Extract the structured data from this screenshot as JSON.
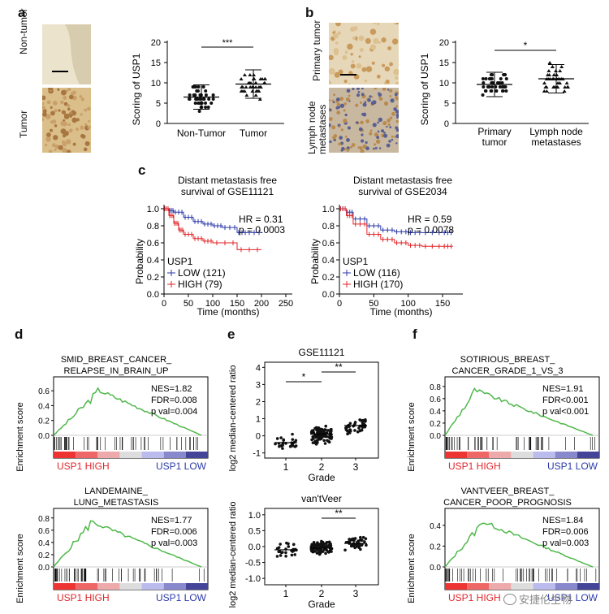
{
  "panels": {
    "a": {
      "label": "a",
      "img_labels": [
        "Non-tumor",
        "Tumor"
      ],
      "ylabel": "Scoring of USP1",
      "categories": [
        "Non-Tumor",
        "Tumor"
      ],
      "sig": "***",
      "yticks": [
        "0",
        "5",
        "10",
        "15",
        "20"
      ]
    },
    "b": {
      "label": "b",
      "img_labels": [
        "Primary tumor",
        "Lymph node metastases"
      ],
      "ylabel": "Scoring of USP1",
      "categories": [
        "Primary tumor",
        "Lymph node metastases"
      ],
      "sig": "*",
      "yticks": [
        "0",
        "5",
        "10",
        "15",
        "20"
      ]
    },
    "c": {
      "label": "c",
      "left": {
        "title1": "Distant metastasis free",
        "title2": "survival of GSE11121",
        "hr": "HR = 0.31",
        "p": "p = 0.0003",
        "legend_title": "USP1",
        "legend_low": "LOW (121)",
        "legend_high": "HIGH (79)",
        "xlabel": "Time (months)",
        "ylabel": "Probability",
        "xticks": [
          "0",
          "50",
          "100",
          "150",
          "200",
          "250"
        ],
        "yticks": [
          "0.0",
          "0.2",
          "0.4",
          "0.6",
          "0.8",
          "1.0"
        ]
      },
      "right": {
        "title1": "Distant metastasis free",
        "title2": "survival of GSE2034",
        "hr": "HR = 0.59",
        "p": "p = 0.0078",
        "legend_title": "USP1",
        "legend_low": "LOW (116)",
        "legend_high": "HIGH (170)",
        "xlabel": "Time (months)",
        "ylabel": "Probability",
        "xticks": [
          "0",
          "50",
          "100",
          "150"
        ],
        "yticks": [
          "0.0",
          "0.2",
          "0.4",
          "0.6",
          "0.8",
          "1.0"
        ]
      }
    },
    "d": {
      "label": "d",
      "top": {
        "title1": "SMID_BREAST_CANCER_",
        "title2": "RELAPSE_IN_BRAIN_UP",
        "nes": "NES=1.82",
        "fdr": "FDR=0.008",
        "pval": "p val=0.004",
        "yticks": [
          "0.6",
          "0.4",
          "0.2",
          "0.0"
        ],
        "ylabel": "Enrichment score",
        "high": "USP1 HIGH",
        "low": "USP1 LOW"
      },
      "bottom": {
        "title1": "LANDEMAINE_",
        "title2": "LUNG_METASTASIS",
        "nes": "NES=1.77",
        "fdr": "FDR=0.006",
        "pval": "p val=0.003",
        "yticks": [
          "0.8",
          "0.6",
          "0.4",
          "0.2",
          "0.0"
        ],
        "ylabel": "Enrichment score",
        "high": "USP1 HIGH",
        "low": "USP1 LOW"
      }
    },
    "e": {
      "label": "e",
      "top": {
        "title": "GSE11121",
        "sig1": "*",
        "sig2": "**",
        "xlabel": "Grade",
        "ylabel": "log2 median-centered ratio",
        "categories": [
          "1",
          "2",
          "3"
        ],
        "yticks": [
          "4",
          "3",
          "2",
          "1",
          "0",
          "-1"
        ]
      },
      "bottom": {
        "title": "van'tVeer",
        "sig2": "**",
        "xlabel": "Grade",
        "ylabel": "log2 median-centered ratio",
        "categories": [
          "1",
          "2",
          "3"
        ],
        "yticks": [
          "1.0",
          "0.5",
          "0.0",
          "-0.5",
          "-1.0"
        ]
      }
    },
    "f": {
      "label": "f",
      "top": {
        "title1": "SOTIRIOUS_BREAST_",
        "title2": "CANCER_GRADE_1_VS_3",
        "nes": "NES=1.91",
        "fdr": "FDR<0.001",
        "pval": "p val<0.001",
        "yticks": [
          "0.8",
          "0.6",
          "0.4",
          "0.2",
          "0.0"
        ],
        "ylabel": "Enrichment score",
        "high": "USP1 HIGH",
        "low": "USP1 LOW"
      },
      "bottom": {
        "title1": "VANTVEER_BREAST_",
        "title2": "CANCER_POOR_PROGNOSIS",
        "nes": "NES=1.84",
        "fdr": "FDR=0.006",
        "pval": "p val=0.003",
        "yticks": [
          "0.4",
          "0.2",
          "0.0"
        ],
        "ylabel": "Enrichment score",
        "high": "USP1 HIGH",
        "low": "USP1 LOW"
      }
    }
  },
  "watermark": "安捷伦生物",
  "colors": {
    "blue": "#2b3aa8",
    "red": "#e0262a",
    "green": "#4fb84a",
    "tissue_bg": "#e8dcc0",
    "tissue_brown": "#b98a4e"
  },
  "chart_data": [
    {
      "type": "scatter",
      "panel": "a",
      "categories": [
        "Non-Tumor",
        "Tumor"
      ],
      "means": [
        6.5,
        9.7
      ],
      "sd": [
        3,
        3.5
      ],
      "ylim": [
        0,
        20
      ],
      "ylabel": "Scoring of USP1"
    },
    {
      "type": "scatter",
      "panel": "b",
      "categories": [
        "Primary tumor",
        "Lymph node metastases"
      ],
      "means": [
        9.6,
        11
      ],
      "sd": [
        3,
        3.5
      ],
      "ylim": [
        0,
        20
      ],
      "ylabel": "Scoring of USP1"
    },
    {
      "type": "line",
      "panel": "c-left",
      "xlabel": "Time (months)",
      "ylabel": "Probability",
      "xlim": [
        0,
        250
      ],
      "ylim": [
        0,
        1
      ],
      "series": [
        {
          "name": "LOW (121)",
          "x": [
            0,
            10,
            20,
            40,
            60,
            80,
            100,
            120,
            150,
            170,
            200
          ],
          "y": [
            1,
            0.98,
            0.96,
            0.9,
            0.85,
            0.82,
            0.8,
            0.78,
            0.72,
            0.72,
            0.72
          ]
        },
        {
          "name": "HIGH (79)",
          "x": [
            0,
            10,
            20,
            30,
            40,
            60,
            80,
            100,
            150,
            200
          ],
          "y": [
            1,
            0.92,
            0.83,
            0.75,
            0.7,
            0.65,
            0.62,
            0.6,
            0.52,
            0.52
          ]
        }
      ]
    },
    {
      "type": "line",
      "panel": "c-right",
      "xlabel": "Time (months)",
      "ylabel": "Probability",
      "xlim": [
        0,
        170
      ],
      "ylim": [
        0,
        1
      ],
      "series": [
        {
          "name": "LOW (116)",
          "x": [
            0,
            10,
            20,
            40,
            60,
            80,
            100,
            120,
            150,
            165
          ],
          "y": [
            1,
            0.96,
            0.88,
            0.8,
            0.75,
            0.73,
            0.72,
            0.72,
            0.72,
            0.72
          ]
        },
        {
          "name": "HIGH (170)",
          "x": [
            0,
            10,
            20,
            40,
            60,
            80,
            100,
            120,
            150,
            165
          ],
          "y": [
            1,
            0.92,
            0.82,
            0.7,
            0.64,
            0.6,
            0.57,
            0.56,
            0.56,
            0.56
          ]
        }
      ]
    },
    {
      "type": "scatter",
      "panel": "e-top",
      "categories": [
        "1",
        "2",
        "3"
      ],
      "means": [
        -0.4,
        0.1,
        0.6
      ],
      "ylim": [
        -1,
        4
      ],
      "xlabel": "Grade"
    },
    {
      "type": "scatter",
      "panel": "e-bottom",
      "categories": [
        "1",
        "2",
        "3"
      ],
      "means": [
        -0.1,
        -0.05,
        0.1
      ],
      "ylim": [
        -1,
        1
      ],
      "xlabel": "Grade"
    }
  ]
}
